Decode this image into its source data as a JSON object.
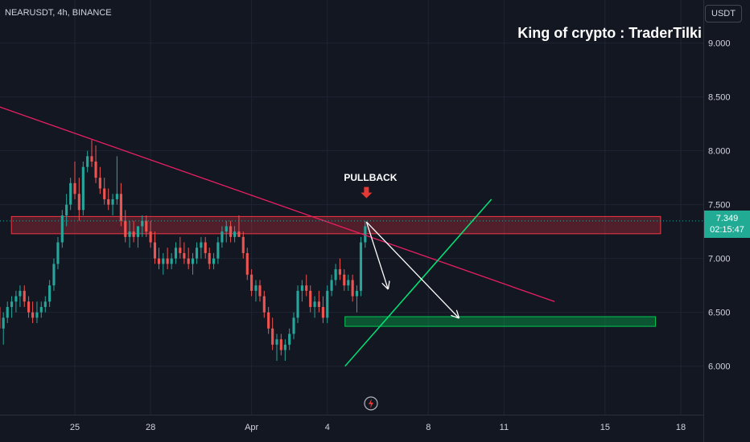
{
  "header": {
    "symbol_info": "NEARUSDT, 4h, BINANCE",
    "currency": "USDT"
  },
  "watermark": "King of crypto : TraderTilki",
  "annotations": {
    "pullback": "PULLBACK"
  },
  "price_tag": {
    "price": "7.349",
    "countdown": "02:15:47"
  },
  "colors": {
    "background": "#131722",
    "up_candle": "#26a69a",
    "down_candle": "#ef5350",
    "trendline": "#e91e63",
    "support_line": "#00e676",
    "resistance_zone": "#f23645",
    "support_zone": "#00c853",
    "projection_arrow": "#ffffff",
    "pullback_arrow": "#e53935"
  },
  "icons": {
    "replay": "replay-icon",
    "arrow": "down-arrow-icon"
  },
  "chart_data": {
    "type": "candlestick",
    "title": "",
    "xlabel": "",
    "ylabel": "",
    "x_tick_labels": [
      "25",
      "28",
      "Apr",
      "4",
      "8",
      "11",
      "15",
      "18"
    ],
    "x_tick_day_index": [
      0,
      3,
      7,
      10,
      14,
      17,
      21,
      24
    ],
    "ylim": [
      5.55,
      9.4
    ],
    "y_ticks": [
      {
        "value": 6.0,
        "label": "6.000"
      },
      {
        "value": 6.5,
        "label": "6.500"
      },
      {
        "value": 7.0,
        "label": "7.000"
      },
      {
        "value": 7.5,
        "label": "7.500"
      },
      {
        "value": 8.0,
        "label": "8.000"
      },
      {
        "value": 8.5,
        "label": "8.500"
      },
      {
        "value": 9.0,
        "label": "9.000"
      }
    ],
    "grid": true,
    "candles": [
      [
        -3.5,
        6.45,
        6.6,
        6.3,
        6.5
      ],
      [
        -3.33,
        6.5,
        6.7,
        6.4,
        6.6
      ],
      [
        -3.17,
        6.6,
        6.75,
        6.5,
        6.55
      ],
      [
        -3.0,
        6.55,
        6.6,
        6.3,
        6.35
      ],
      [
        -2.83,
        6.35,
        6.5,
        6.2,
        6.45
      ],
      [
        -2.67,
        6.45,
        6.6,
        6.4,
        6.55
      ],
      [
        -2.5,
        6.55,
        6.65,
        6.45,
        6.6
      ],
      [
        -2.33,
        6.6,
        6.7,
        6.5,
        6.65
      ],
      [
        -2.17,
        6.65,
        6.75,
        6.55,
        6.7
      ],
      [
        -2.0,
        6.7,
        6.75,
        6.55,
        6.6
      ],
      [
        -1.83,
        6.6,
        6.65,
        6.45,
        6.5
      ],
      [
        -1.67,
        6.5,
        6.6,
        6.4,
        6.45
      ],
      [
        -1.5,
        6.45,
        6.6,
        6.4,
        6.5
      ],
      [
        -1.33,
        6.5,
        6.6,
        6.45,
        6.55
      ],
      [
        -1.17,
        6.55,
        6.65,
        6.5,
        6.6
      ],
      [
        -1.0,
        6.6,
        6.8,
        6.55,
        6.75
      ],
      [
        -0.83,
        6.75,
        7.0,
        6.7,
        6.95
      ],
      [
        -0.67,
        6.95,
        7.2,
        6.9,
        7.15
      ],
      [
        -0.5,
        7.15,
        7.45,
        7.1,
        7.4
      ],
      [
        -0.33,
        7.4,
        7.6,
        7.3,
        7.5
      ],
      [
        -0.17,
        7.5,
        7.75,
        7.45,
        7.7
      ],
      [
        0.0,
        7.7,
        7.9,
        7.55,
        7.6
      ],
      [
        0.17,
        7.6,
        7.75,
        7.35,
        7.45
      ],
      [
        0.33,
        7.45,
        7.9,
        7.4,
        7.85
      ],
      [
        0.5,
        7.85,
        8.0,
        7.8,
        7.95
      ],
      [
        0.67,
        7.95,
        8.1,
        7.85,
        7.9
      ],
      [
        0.83,
        7.9,
        8.05,
        7.7,
        7.75
      ],
      [
        1.0,
        7.75,
        7.85,
        7.6,
        7.65
      ],
      [
        1.17,
        7.65,
        7.75,
        7.5,
        7.55
      ],
      [
        1.33,
        7.55,
        7.65,
        7.45,
        7.5
      ],
      [
        1.5,
        7.5,
        7.6,
        7.4,
        7.55
      ],
      [
        1.67,
        7.55,
        7.95,
        7.5,
        7.6
      ],
      [
        1.83,
        7.6,
        7.7,
        7.3,
        7.35
      ],
      [
        2.0,
        7.35,
        7.45,
        7.15,
        7.2
      ],
      [
        2.17,
        7.2,
        7.35,
        7.1,
        7.25
      ],
      [
        2.33,
        7.25,
        7.35,
        7.15,
        7.2
      ],
      [
        2.5,
        7.2,
        7.3,
        7.1,
        7.3
      ],
      [
        2.67,
        7.3,
        7.4,
        7.2,
        7.35
      ],
      [
        2.83,
        7.35,
        7.4,
        7.2,
        7.25
      ],
      [
        3.0,
        7.25,
        7.35,
        7.1,
        7.15
      ],
      [
        3.17,
        7.15,
        7.25,
        6.95,
        7.0
      ],
      [
        3.33,
        7.0,
        7.1,
        6.9,
        6.95
      ],
      [
        3.5,
        6.95,
        7.05,
        6.85,
        7.0
      ],
      [
        3.67,
        7.0,
        7.1,
        6.9,
        6.95
      ],
      [
        3.83,
        6.95,
        7.05,
        6.9,
        7.0
      ],
      [
        4.0,
        7.0,
        7.15,
        6.95,
        7.1
      ],
      [
        4.17,
        7.1,
        7.2,
        7.0,
        7.05
      ],
      [
        4.33,
        7.05,
        7.15,
        6.95,
        7.0
      ],
      [
        4.5,
        7.0,
        7.1,
        6.9,
        6.95
      ],
      [
        4.67,
        6.95,
        7.05,
        6.85,
        7.0
      ],
      [
        4.83,
        7.0,
        7.15,
        6.95,
        7.1
      ],
      [
        5.0,
        7.1,
        7.2,
        7.0,
        7.15
      ],
      [
        5.17,
        7.15,
        7.2,
        7.0,
        7.05
      ],
      [
        5.33,
        7.05,
        7.1,
        6.9,
        6.95
      ],
      [
        5.5,
        6.95,
        7.05,
        6.9,
        7.0
      ],
      [
        5.67,
        7.0,
        7.2,
        6.95,
        7.15
      ],
      [
        5.83,
        7.15,
        7.3,
        7.1,
        7.25
      ],
      [
        6.0,
        7.25,
        7.35,
        7.15,
        7.3
      ],
      [
        6.17,
        7.3,
        7.35,
        7.15,
        7.2
      ],
      [
        6.33,
        7.2,
        7.3,
        7.15,
        7.25
      ],
      [
        6.5,
        7.25,
        7.4,
        7.2,
        7.2
      ],
      [
        6.67,
        7.2,
        7.25,
        7.0,
        7.05
      ],
      [
        6.83,
        7.05,
        7.1,
        6.8,
        6.85
      ],
      [
        7.0,
        6.85,
        6.9,
        6.65,
        6.7
      ],
      [
        7.17,
        6.7,
        6.8,
        6.6,
        6.75
      ],
      [
        7.33,
        6.75,
        6.8,
        6.6,
        6.65
      ],
      [
        7.5,
        6.65,
        6.7,
        6.45,
        6.5
      ],
      [
        7.67,
        6.5,
        6.55,
        6.3,
        6.35
      ],
      [
        7.83,
        6.35,
        6.45,
        6.15,
        6.2
      ],
      [
        8.0,
        6.2,
        6.3,
        6.05,
        6.25
      ],
      [
        8.17,
        6.25,
        6.3,
        6.1,
        6.15
      ],
      [
        8.33,
        6.15,
        6.25,
        6.05,
        6.2
      ],
      [
        8.5,
        6.2,
        6.35,
        6.15,
        6.3
      ],
      [
        8.67,
        6.3,
        6.5,
        6.25,
        6.45
      ],
      [
        8.83,
        6.45,
        6.75,
        6.4,
        6.7
      ],
      [
        9.0,
        6.7,
        6.8,
        6.6,
        6.75
      ],
      [
        9.17,
        6.75,
        6.85,
        6.65,
        6.7
      ],
      [
        9.33,
        6.7,
        6.75,
        6.5,
        6.55
      ],
      [
        9.5,
        6.55,
        6.65,
        6.45,
        6.6
      ],
      [
        9.67,
        6.6,
        6.7,
        6.5,
        6.55
      ],
      [
        9.83,
        6.55,
        6.65,
        6.4,
        6.45
      ],
      [
        10.0,
        6.45,
        6.75,
        6.4,
        6.7
      ],
      [
        10.17,
        6.7,
        6.85,
        6.65,
        6.8
      ],
      [
        10.33,
        6.8,
        6.95,
        6.75,
        6.9
      ],
      [
        10.5,
        6.9,
        7.0,
        6.8,
        6.85
      ],
      [
        10.67,
        6.85,
        6.9,
        6.7,
        6.75
      ],
      [
        10.83,
        6.75,
        6.85,
        6.7,
        6.8
      ],
      [
        11.0,
        6.8,
        6.85,
        6.6,
        6.65
      ],
      [
        11.17,
        6.65,
        6.75,
        6.5,
        6.7
      ],
      [
        11.33,
        6.7,
        7.2,
        6.65,
        7.15
      ],
      [
        11.5,
        7.15,
        7.35,
        7.1,
        7.3
      ]
    ],
    "trendline": [
      [
        -3.5,
        8.45
      ],
      [
        19.0,
        6.6
      ]
    ],
    "support_line": [
      [
        10.7,
        6.0
      ],
      [
        16.5,
        7.55
      ]
    ],
    "resistance_zone": {
      "x": [
        -3.5,
        23.2
      ],
      "y": [
        7.23,
        7.39
      ]
    },
    "support_zone": {
      "x": [
        10.7,
        23.0
      ],
      "y": [
        6.37,
        6.46
      ]
    },
    "pullback_marker": {
      "x": 11.55,
      "y": 7.56
    },
    "projection_arrows": [
      {
        "from": [
          11.55,
          7.34
        ],
        "to": [
          12.4,
          6.72
        ]
      },
      {
        "from": [
          11.55,
          7.34
        ],
        "to": [
          15.2,
          6.45
        ]
      }
    ],
    "last_price": 7.349
  }
}
